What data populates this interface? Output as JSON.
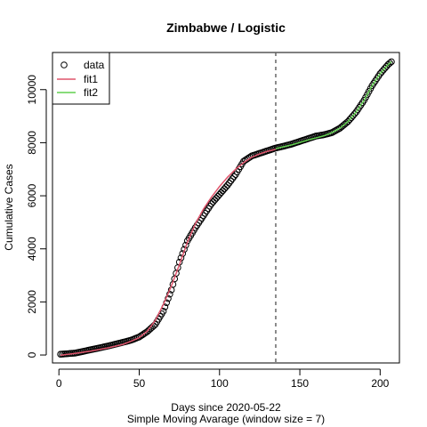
{
  "chart_data": {
    "type": "line",
    "title": "Zimbabwe / Logistic",
    "xlabel": "Days since 2020-05-22",
    "xlabel2": "Simple Moving Avarage (window size = 7)",
    "ylabel": "Cumulative Cases",
    "xlim": [
      -4,
      212
    ],
    "ylim": [
      -300,
      11400
    ],
    "xticks": [
      0,
      50,
      100,
      150,
      200
    ],
    "yticks": [
      0,
      2000,
      4000,
      6000,
      8000,
      10000
    ],
    "vline_x": 135,
    "legend": {
      "placement": "top-left",
      "entries": [
        "data",
        "fit1",
        "fit2"
      ]
    },
    "colors": {
      "data": "#000000",
      "fit1": "#DF536B",
      "fit2": "#61D04F",
      "vline": "#666666"
    },
    "data_anchors": [
      [
        1,
        30
      ],
      [
        10,
        70
      ],
      [
        20,
        200
      ],
      [
        30,
        330
      ],
      [
        40,
        480
      ],
      [
        45,
        560
      ],
      [
        50,
        680
      ],
      [
        55,
        880
      ],
      [
        60,
        1150
      ],
      [
        65,
        1650
      ],
      [
        70,
        2450
      ],
      [
        75,
        3500
      ],
      [
        80,
        4300
      ],
      [
        85,
        4800
      ],
      [
        90,
        5250
      ],
      [
        95,
        5700
      ],
      [
        100,
        6050
      ],
      [
        105,
        6400
      ],
      [
        110,
        6800
      ],
      [
        115,
        7300
      ],
      [
        120,
        7500
      ],
      [
        125,
        7600
      ],
      [
        130,
        7700
      ],
      [
        135,
        7800
      ],
      [
        140,
        7870
      ],
      [
        145,
        7950
      ],
      [
        150,
        8050
      ],
      [
        155,
        8150
      ],
      [
        160,
        8250
      ],
      [
        165,
        8300
      ],
      [
        170,
        8380
      ],
      [
        175,
        8550
      ],
      [
        180,
        8800
      ],
      [
        185,
        9150
      ],
      [
        190,
        9600
      ],
      [
        195,
        10150
      ],
      [
        200,
        10600
      ],
      [
        205,
        10950
      ],
      [
        207,
        11050
      ]
    ],
    "fit1_anchors": [
      [
        1,
        -10
      ],
      [
        10,
        60
      ],
      [
        20,
        150
      ],
      [
        30,
        260
      ],
      [
        40,
        400
      ],
      [
        50,
        650
      ],
      [
        55,
        900
      ],
      [
        60,
        1300
      ],
      [
        65,
        1900
      ],
      [
        70,
        2600
      ],
      [
        75,
        3400
      ],
      [
        80,
        4250
      ],
      [
        85,
        4950
      ],
      [
        90,
        5500
      ],
      [
        95,
        5950
      ],
      [
        100,
        6350
      ],
      [
        105,
        6700
      ],
      [
        110,
        7000
      ],
      [
        115,
        7250
      ],
      [
        120,
        7450
      ],
      [
        125,
        7580
      ],
      [
        130,
        7680
      ],
      [
        135,
        7750
      ]
    ],
    "fit2_anchors": [
      [
        135,
        7780
      ],
      [
        145,
        7920
      ],
      [
        155,
        8100
      ],
      [
        165,
        8260
      ],
      [
        170,
        8380
      ],
      [
        175,
        8550
      ],
      [
        180,
        8800
      ],
      [
        185,
        9150
      ],
      [
        190,
        9600
      ],
      [
        195,
        10150
      ],
      [
        200,
        10600
      ],
      [
        205,
        10950
      ],
      [
        207,
        11050
      ]
    ]
  }
}
